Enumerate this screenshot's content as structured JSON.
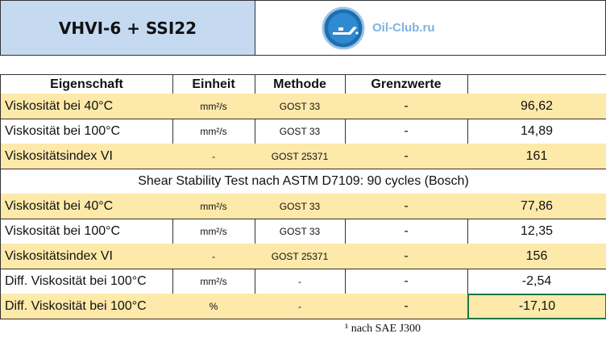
{
  "header": {
    "title": "VHVI-6 + SSI22",
    "logo_text": "Oil-Club.ru"
  },
  "table": {
    "columns": [
      "Eigenschaft",
      "Einheit",
      "Methode",
      "Grenzwerte",
      ""
    ],
    "rows": [
      [
        "Viskosität bei 40°C",
        "mm²/s",
        "GOST 33",
        "-",
        "96,62"
      ],
      [
        "Viskosität bei 100°C",
        "mm²/s",
        "GOST 33",
        "-",
        "14,89"
      ],
      [
        "Viskositätsindex VI",
        "-",
        "GOST 25371",
        "-",
        "161"
      ]
    ],
    "section": "Shear Stability Test nach ASTM D7109: 90 cycles (Bosch)",
    "rows_after": [
      [
        "Viskosität bei 40°C",
        "mm²/s",
        "GOST 33",
        "-",
        "77,86"
      ],
      [
        "Viskosität bei 100°C",
        "mm²/s",
        "GOST 33",
        "-",
        "12,35"
      ],
      [
        "Viskositätsindex VI",
        "-",
        "GOST 25371",
        "-",
        "156"
      ],
      [
        "Diff. Viskosität bei 100°C",
        "mm²/s",
        "-",
        "-",
        "-2,54"
      ],
      [
        "Diff. Viskosität bei 100°C",
        "%",
        "-",
        "-",
        "-17,10"
      ]
    ]
  },
  "footnote": "¹ nach SAE J300"
}
